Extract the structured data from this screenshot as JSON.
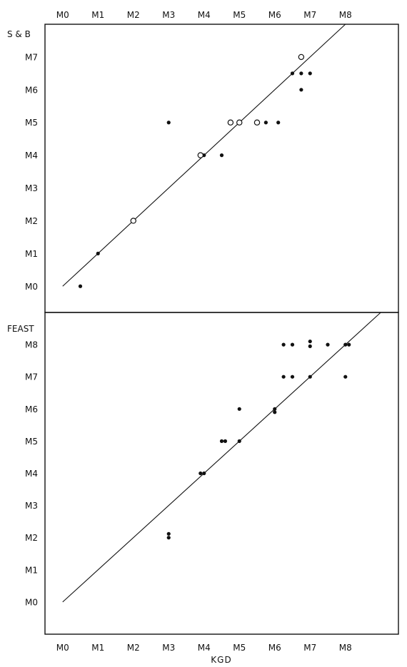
{
  "chart_data": [
    {
      "type": "scatter",
      "ylabel": "S & B",
      "xlabel": "",
      "x_ticks": [
        "M0",
        "M1",
        "M2",
        "M3",
        "M4",
        "M5",
        "M6",
        "M7",
        "M8"
      ],
      "y_ticks": [
        "M0",
        "M1",
        "M2",
        "M3",
        "M4",
        "M5",
        "M6",
        "M7"
      ],
      "xlim": [
        -0.5,
        9.5
      ],
      "ylim": [
        -0.8,
        8.0
      ],
      "grid": false,
      "reference_line": {
        "x": [
          0,
          8
        ],
        "y": [
          0,
          8
        ]
      },
      "series": [
        {
          "marker": "filled",
          "points": [
            {
              "x": 0.5,
              "y": 0
            },
            {
              "x": 1.0,
              "y": 1
            },
            {
              "x": 3.0,
              "y": 5
            },
            {
              "x": 4.0,
              "y": 4
            },
            {
              "x": 4.5,
              "y": 4
            },
            {
              "x": 5.75,
              "y": 5
            },
            {
              "x": 6.1,
              "y": 5
            },
            {
              "x": 6.5,
              "y": 6.5
            },
            {
              "x": 6.75,
              "y": 6
            },
            {
              "x": 6.75,
              "y": 6.5
            },
            {
              "x": 7.0,
              "y": 6.5
            }
          ]
        },
        {
          "marker": "open",
          "points": [
            {
              "x": 2.0,
              "y": 2
            },
            {
              "x": 3.9,
              "y": 4
            },
            {
              "x": 4.75,
              "y": 5
            },
            {
              "x": 5.0,
              "y": 5
            },
            {
              "x": 5.5,
              "y": 5
            },
            {
              "x": 6.75,
              "y": 7
            }
          ]
        }
      ]
    },
    {
      "type": "scatter",
      "ylabel": "FEAST",
      "xlabel": "KGD",
      "x_ticks": [
        "M0",
        "M1",
        "M2",
        "M3",
        "M4",
        "M5",
        "M6",
        "M7",
        "M8"
      ],
      "y_ticks": [
        "M0",
        "M1",
        "M2",
        "M3",
        "M4",
        "M5",
        "M6",
        "M7",
        "M8"
      ],
      "xlim": [
        -0.5,
        9.5
      ],
      "ylim": [
        -1.0,
        9.0
      ],
      "grid": false,
      "reference_line": {
        "x": [
          0,
          9
        ],
        "y": [
          0,
          9
        ]
      },
      "series": [
        {
          "marker": "filled",
          "points": [
            {
              "x": 3.0,
              "y": 2.0
            },
            {
              "x": 3.0,
              "y": 2.12
            },
            {
              "x": 3.9,
              "y": 4
            },
            {
              "x": 4.0,
              "y": 4
            },
            {
              "x": 4.5,
              "y": 5
            },
            {
              "x": 4.6,
              "y": 5
            },
            {
              "x": 5.0,
              "y": 5
            },
            {
              "x": 5.0,
              "y": 6
            },
            {
              "x": 6.0,
              "y": 5.9
            },
            {
              "x": 6.0,
              "y": 6.0
            },
            {
              "x": 6.25,
              "y": 7
            },
            {
              "x": 6.5,
              "y": 7
            },
            {
              "x": 7.0,
              "y": 7
            },
            {
              "x": 8.0,
              "y": 7
            },
            {
              "x": 6.25,
              "y": 8
            },
            {
              "x": 6.5,
              "y": 8
            },
            {
              "x": 7.0,
              "y": 7.95
            },
            {
              "x": 7.0,
              "y": 8.1
            },
            {
              "x": 7.5,
              "y": 8
            },
            {
              "x": 8.0,
              "y": 8
            },
            {
              "x": 8.1,
              "y": 8
            }
          ]
        }
      ]
    }
  ]
}
